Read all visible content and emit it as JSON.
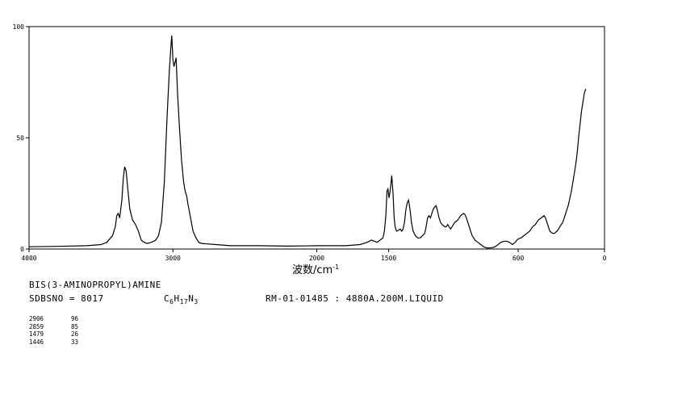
{
  "chart_data": {
    "type": "line",
    "xlabel": "波数/cm",
    "xlabel_sup": "-1",
    "xlim": [
      4000,
      0
    ],
    "ylim": [
      0,
      100
    ],
    "x_ticks": [
      4000,
      3000,
      2000,
      1500,
      600,
      0
    ],
    "x_tick_labels": [
      "4000",
      "3000",
      "2000",
      "1500",
      "600",
      "0"
    ],
    "y_ticks": [
      0,
      50,
      100
    ],
    "y_tick_labels": [
      "0",
      "50",
      "100"
    ],
    "grid": false,
    "series": [
      {
        "points": [
          [
            4000,
            1
          ],
          [
            3800,
            1.2
          ],
          [
            3600,
            1.5
          ],
          [
            3500,
            2
          ],
          [
            3460,
            3
          ],
          [
            3420,
            6
          ],
          [
            3400,
            10
          ],
          [
            3390,
            15
          ],
          [
            3380,
            16
          ],
          [
            3370,
            14
          ],
          [
            3355,
            22
          ],
          [
            3345,
            32
          ],
          [
            3335,
            37
          ],
          [
            3325,
            35
          ],
          [
            3315,
            28
          ],
          [
            3300,
            18
          ],
          [
            3280,
            13
          ],
          [
            3260,
            11
          ],
          [
            3240,
            8
          ],
          [
            3220,
            4
          ],
          [
            3200,
            3
          ],
          [
            3180,
            2.5
          ],
          [
            3150,
            3
          ],
          [
            3120,
            4
          ],
          [
            3100,
            6
          ],
          [
            3080,
            12
          ],
          [
            3060,
            30
          ],
          [
            3040,
            60
          ],
          [
            3025,
            80
          ],
          [
            3015,
            90
          ],
          [
            3008,
            96
          ],
          [
            3000,
            85
          ],
          [
            2993,
            82
          ],
          [
            2985,
            84
          ],
          [
            2978,
            86
          ],
          [
            2968,
            70
          ],
          [
            2955,
            55
          ],
          [
            2940,
            40
          ],
          [
            2925,
            30
          ],
          [
            2915,
            26
          ],
          [
            2905,
            24
          ],
          [
            2895,
            20
          ],
          [
            2880,
            15
          ],
          [
            2860,
            8
          ],
          [
            2840,
            5
          ],
          [
            2820,
            3
          ],
          [
            2800,
            2.5
          ],
          [
            2700,
            2
          ],
          [
            2600,
            1.5
          ],
          [
            2400,
            1.5
          ],
          [
            2200,
            1.3
          ],
          [
            2000,
            1.5
          ],
          [
            1800,
            1.5
          ],
          [
            1700,
            2
          ],
          [
            1650,
            3
          ],
          [
            1620,
            4
          ],
          [
            1600,
            3.5
          ],
          [
            1580,
            3
          ],
          [
            1560,
            4
          ],
          [
            1540,
            5
          ],
          [
            1530,
            8
          ],
          [
            1520,
            15
          ],
          [
            1512,
            26
          ],
          [
            1505,
            27
          ],
          [
            1498,
            23
          ],
          [
            1490,
            26
          ],
          [
            1485,
            29
          ],
          [
            1479,
            33
          ],
          [
            1470,
            25
          ],
          [
            1462,
            14
          ],
          [
            1455,
            10
          ],
          [
            1445,
            8
          ],
          [
            1430,
            8.5
          ],
          [
            1420,
            9
          ],
          [
            1410,
            8
          ],
          [
            1400,
            9
          ],
          [
            1390,
            12
          ],
          [
            1380,
            18
          ],
          [
            1370,
            21
          ],
          [
            1362,
            22
          ],
          [
            1352,
            18
          ],
          [
            1342,
            12
          ],
          [
            1330,
            8
          ],
          [
            1315,
            6
          ],
          [
            1300,
            5
          ],
          [
            1280,
            5
          ],
          [
            1265,
            6
          ],
          [
            1250,
            7
          ],
          [
            1240,
            10
          ],
          [
            1230,
            14
          ],
          [
            1220,
            15
          ],
          [
            1210,
            14
          ],
          [
            1200,
            16
          ],
          [
            1190,
            18
          ],
          [
            1180,
            19
          ],
          [
            1170,
            19.5
          ],
          [
            1160,
            17
          ],
          [
            1150,
            14
          ],
          [
            1140,
            12
          ],
          [
            1130,
            11
          ],
          [
            1120,
            10.5
          ],
          [
            1110,
            10
          ],
          [
            1100,
            10
          ],
          [
            1090,
            11
          ],
          [
            1080,
            10
          ],
          [
            1070,
            9
          ],
          [
            1060,
            10
          ],
          [
            1050,
            11
          ],
          [
            1040,
            12
          ],
          [
            1030,
            12.5
          ],
          [
            1020,
            13
          ],
          [
            1010,
            14
          ],
          [
            1000,
            15
          ],
          [
            990,
            15.5
          ],
          [
            980,
            16
          ],
          [
            970,
            15.5
          ],
          [
            960,
            14
          ],
          [
            950,
            12
          ],
          [
            940,
            10
          ],
          [
            930,
            8
          ],
          [
            920,
            6
          ],
          [
            910,
            5
          ],
          [
            900,
            4
          ],
          [
            880,
            3
          ],
          [
            860,
            2
          ],
          [
            840,
            1
          ],
          [
            820,
            0.5
          ],
          [
            800,
            0.5
          ],
          [
            780,
            0.6
          ],
          [
            760,
            1
          ],
          [
            740,
            2
          ],
          [
            720,
            3
          ],
          [
            700,
            3.5
          ],
          [
            680,
            3.5
          ],
          [
            660,
            3
          ],
          [
            650,
            2.5
          ],
          [
            640,
            2
          ],
          [
            630,
            2.5
          ],
          [
            620,
            3
          ],
          [
            610,
            4
          ],
          [
            600,
            4.5
          ],
          [
            580,
            5
          ],
          [
            560,
            6
          ],
          [
            540,
            7
          ],
          [
            520,
            8
          ],
          [
            500,
            10
          ],
          [
            480,
            11
          ],
          [
            460,
            13
          ],
          [
            440,
            14
          ],
          [
            420,
            15
          ],
          [
            410,
            14
          ],
          [
            400,
            12
          ],
          [
            390,
            10
          ],
          [
            380,
            8
          ],
          [
            370,
            7.5
          ],
          [
            360,
            7
          ],
          [
            350,
            7
          ],
          [
            340,
            7.5
          ],
          [
            330,
            8
          ],
          [
            320,
            9
          ],
          [
            310,
            10
          ],
          [
            300,
            11
          ],
          [
            290,
            12
          ],
          [
            280,
            14
          ],
          [
            270,
            16
          ],
          [
            260,
            18
          ],
          [
            250,
            20
          ],
          [
            240,
            23
          ],
          [
            230,
            26
          ],
          [
            220,
            30
          ],
          [
            210,
            34
          ],
          [
            200,
            38
          ],
          [
            190,
            43
          ],
          [
            180,
            50
          ],
          [
            170,
            56
          ],
          [
            160,
            62
          ],
          [
            150,
            66
          ],
          [
            140,
            70
          ],
          [
            130,
            72
          ]
        ]
      }
    ]
  },
  "info": {
    "compound_name": "BIS(3-AMINOPROPYL)AMINE",
    "sdbs_no": "SDBSNO = 8017",
    "formula_c": "C",
    "formula_c_sub": "6",
    "formula_h": "H",
    "formula_h_sub": "17",
    "formula_n": "N",
    "formula_n_sub": "3",
    "measurement": "RM-01-01485 : 4880A.200M.LIQUID"
  },
  "peak_table": [
    {
      "wavenumber": "2906",
      "value": "96"
    },
    {
      "wavenumber": "2859",
      "value": "85"
    },
    {
      "wavenumber": "1479",
      "value": "26"
    },
    {
      "wavenumber": "1446",
      "value": "33"
    }
  ]
}
